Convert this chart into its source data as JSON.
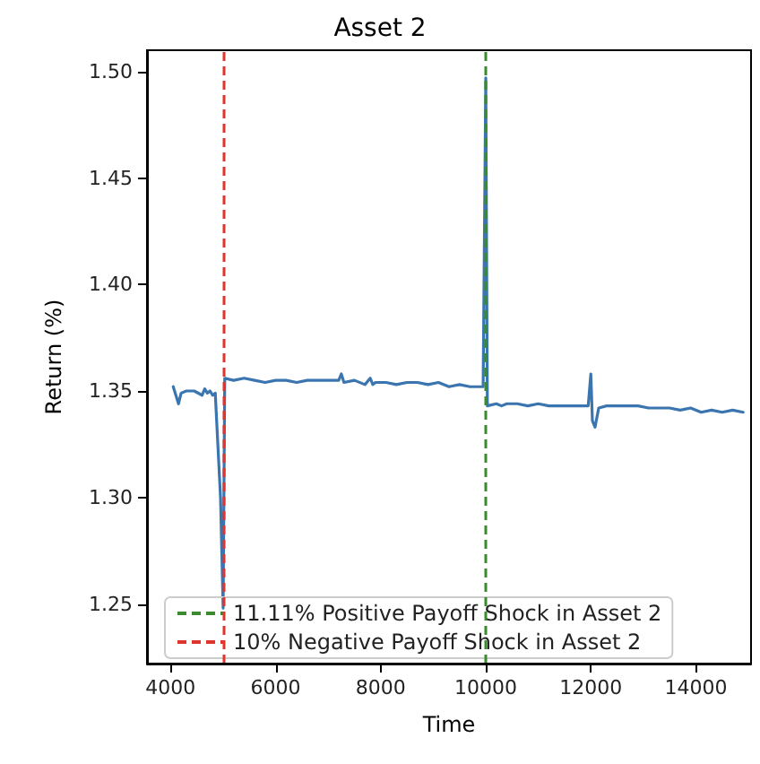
{
  "chart_data": {
    "type": "line",
    "title": "Asset 2",
    "xlabel": "Time",
    "ylabel": "Return (%)",
    "x": [
      4050,
      4100,
      4150,
      4200,
      4300,
      4450,
      4600,
      4650,
      4700,
      4750,
      4800,
      4850,
      4950,
      5000,
      5030,
      5200,
      5400,
      5600,
      5800,
      6000,
      6200,
      6400,
      6600,
      6800,
      7000,
      7200,
      7250,
      7300,
      7500,
      7700,
      7800,
      7850,
      7900,
      8100,
      8300,
      8500,
      8700,
      8900,
      9100,
      9300,
      9500,
      9700,
      9950,
      10000,
      10030,
      10200,
      10300,
      10400,
      10600,
      10800,
      11000,
      11200,
      11400,
      11600,
      11800,
      11950,
      12000,
      12030,
      12080,
      12150,
      12300,
      12500,
      12700,
      12900,
      13100,
      13300,
      13500,
      13700,
      13900,
      14100,
      14300,
      14500,
      14700,
      14900
    ],
    "series": [
      {
        "color": "#3a75b0",
        "values": [
          1.352,
          1.348,
          1.344,
          1.349,
          1.35,
          1.35,
          1.348,
          1.351,
          1.349,
          1.35,
          1.348,
          1.349,
          1.3,
          1.248,
          1.356,
          1.355,
          1.356,
          1.355,
          1.354,
          1.355,
          1.355,
          1.354,
          1.355,
          1.355,
          1.355,
          1.355,
          1.358,
          1.354,
          1.355,
          1.353,
          1.356,
          1.353,
          1.354,
          1.354,
          1.353,
          1.354,
          1.354,
          1.353,
          1.354,
          1.352,
          1.353,
          1.352,
          1.352,
          1.497,
          1.343,
          1.344,
          1.343,
          1.344,
          1.344,
          1.343,
          1.344,
          1.343,
          1.343,
          1.343,
          1.343,
          1.343,
          1.358,
          1.336,
          1.333,
          1.342,
          1.343,
          1.343,
          1.343,
          1.343,
          1.342,
          1.342,
          1.342,
          1.341,
          1.342,
          1.34,
          1.341,
          1.34,
          1.341,
          1.34
        ]
      }
    ],
    "xlim": [
      3550,
      15050
    ],
    "xticks": [
      4000,
      6000,
      8000,
      10000,
      12000,
      14000
    ],
    "ylim": [
      1.222,
      1.51
    ],
    "yticks": [
      1.25,
      {
        "value": 1.3,
        "label": "1.30"
      },
      1.35,
      {
        "value": 1.4,
        "label": "1.40"
      },
      1.45,
      {
        "value": 1.5,
        "label": "1.50"
      }
    ],
    "ref_lines": [
      {
        "axis": "x",
        "value": 10000,
        "label": "11.11% Positive Payoff Shock in Asset 2",
        "color": "#3a8a2e",
        "line_style": "dashed"
      },
      {
        "axis": "x",
        "value": 5000,
        "label": "10% Negative Payoff Shock in Asset 2",
        "color": "#e0342c",
        "line_style": "dashed"
      }
    ],
    "legend": "bottom left",
    "grid": false,
    "marker": "none",
    "line_style": "solid"
  }
}
